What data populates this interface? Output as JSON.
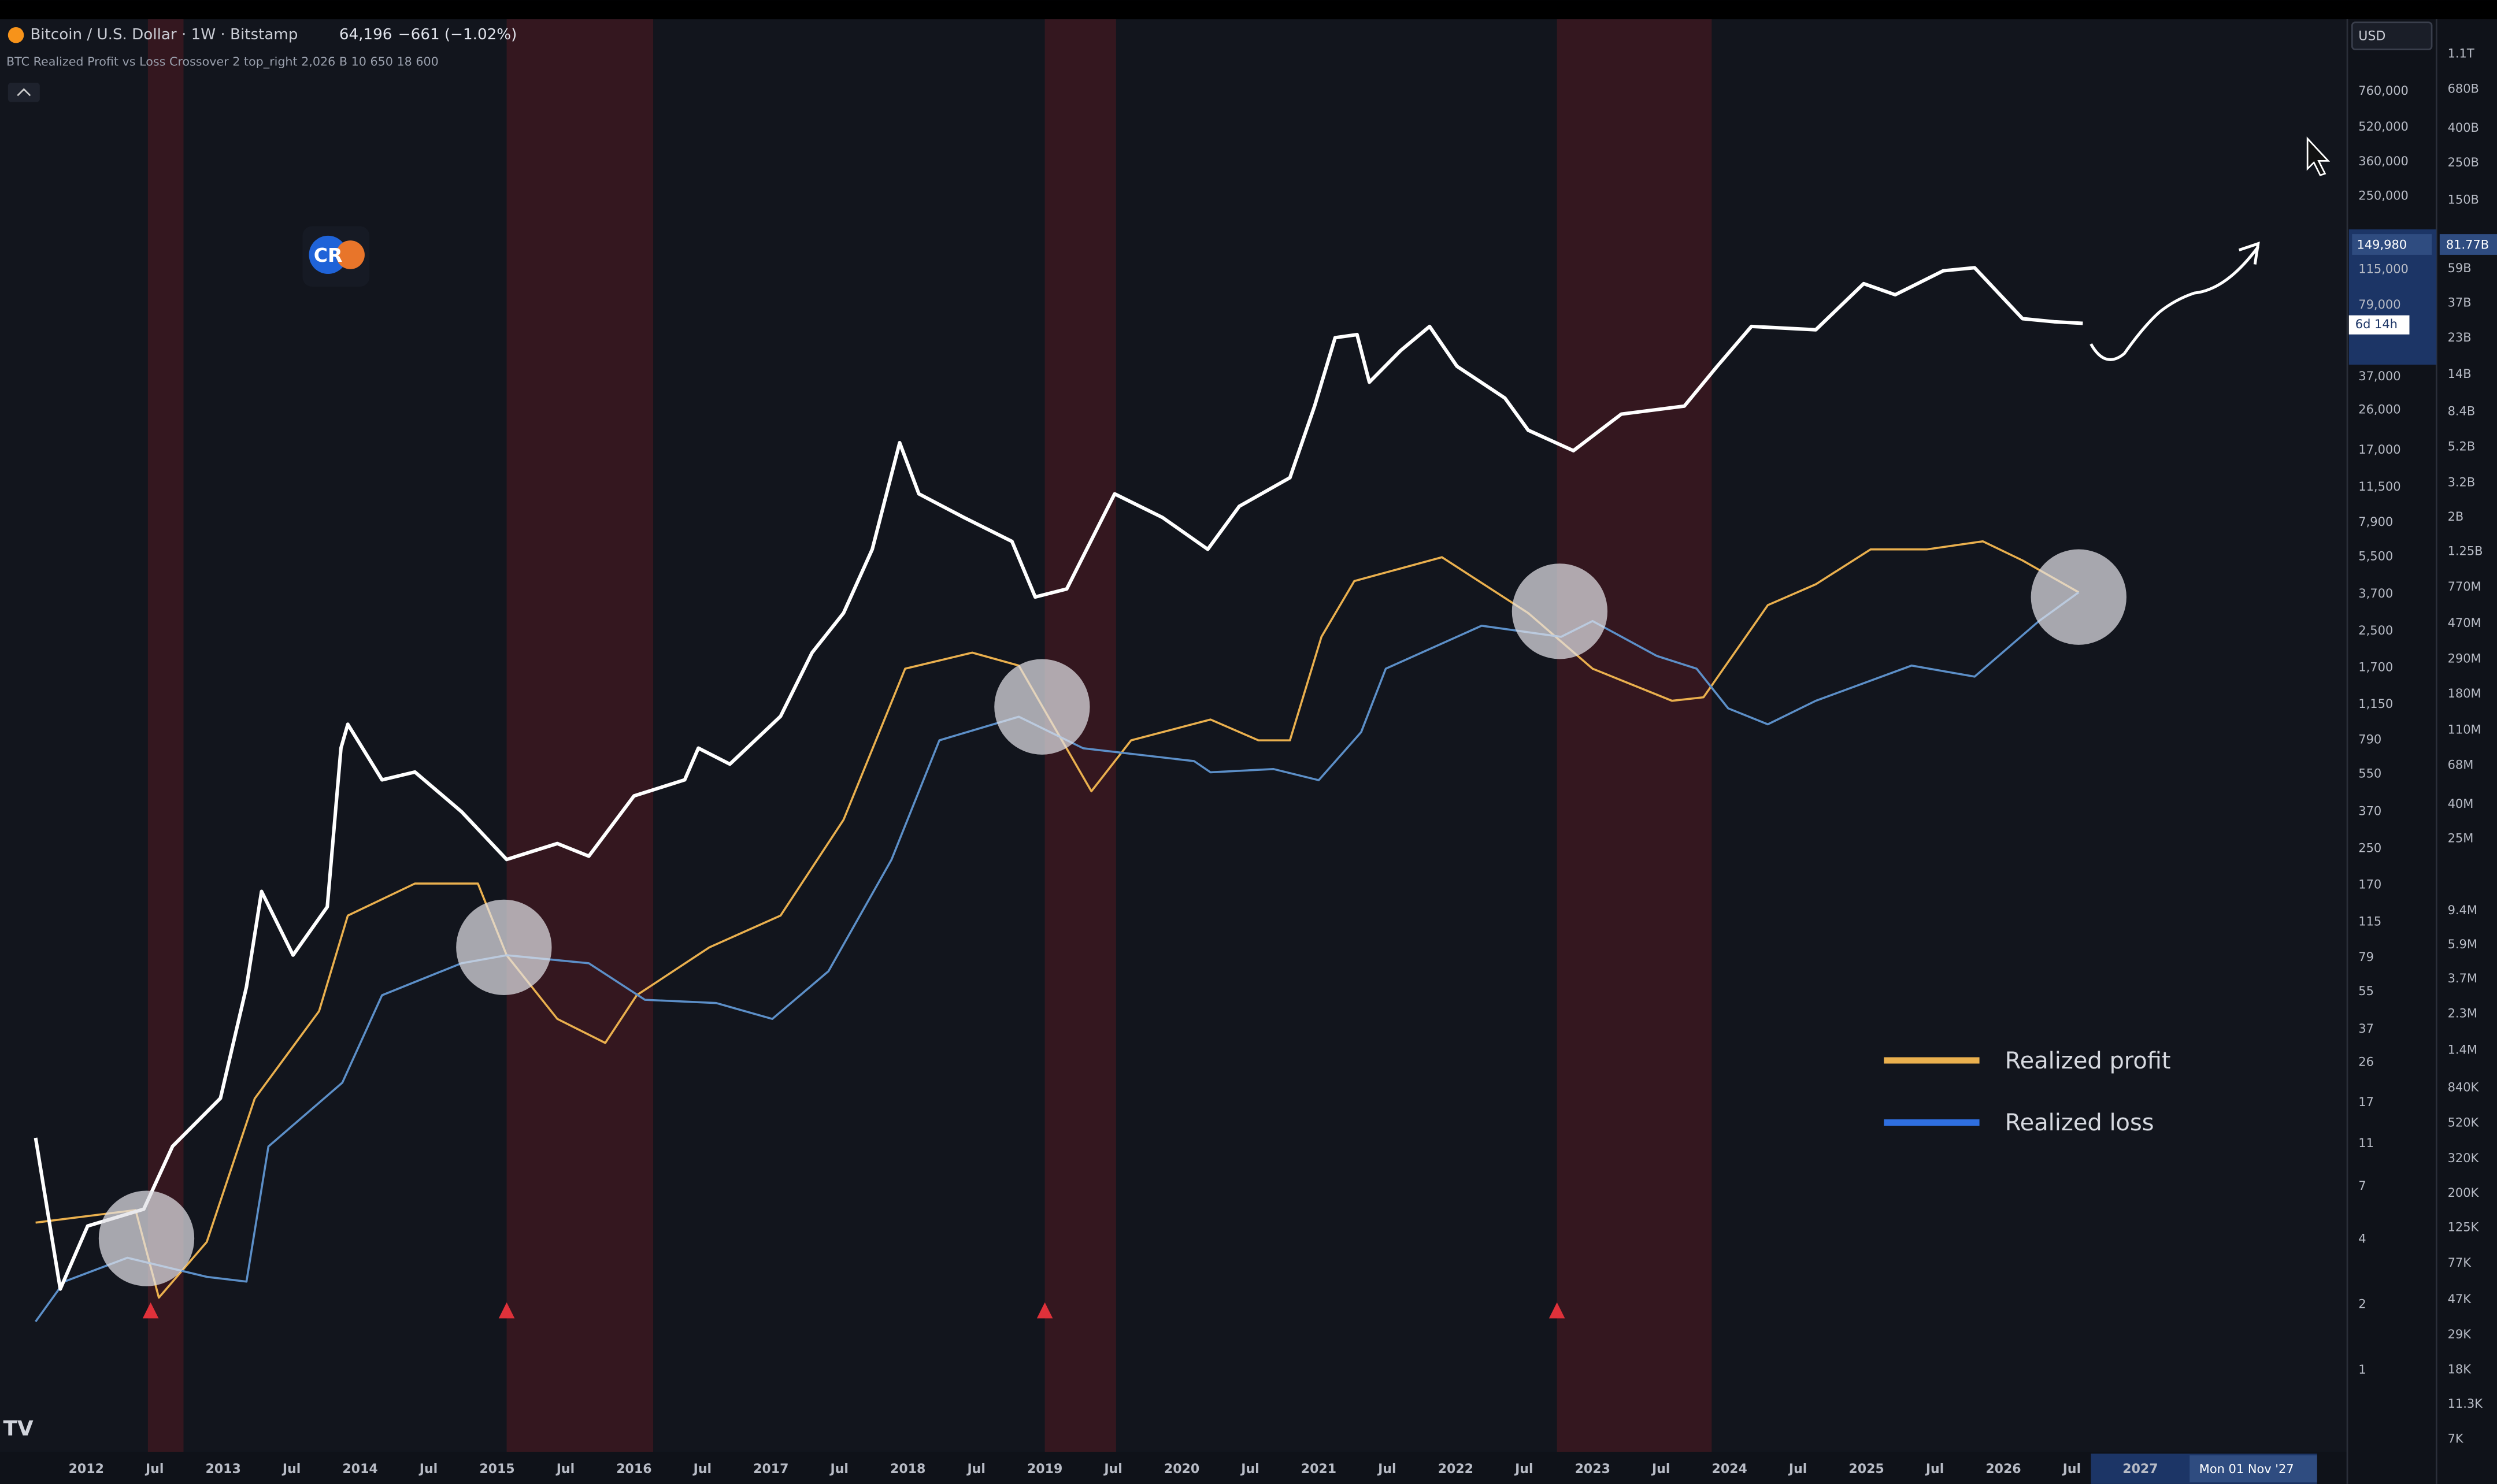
{
  "logo": "CR",
  "watermark": "TV",
  "chart_data": {
    "type": "line",
    "title": "Bitcoin / U.S. Dollar · 1W · Bitstamp",
    "header": {
      "last_price": "64,196",
      "change": "−661 (−1.02%)",
      "indicator": "BTC Realized Profit vs Loss Crossover 2 top_right 2,026 B 10 650 18 600"
    },
    "readouts": {
      "currency": "USD",
      "price": "149,980",
      "countdown": "6d 14h",
      "y2": "81.77B",
      "crosshair_date": "Mon 01 Nov '27"
    },
    "log_scale": true,
    "grid": false,
    "legend": "lower right",
    "xlim": [
      2011.37,
      2028.5
    ],
    "ylim": [
      0.42,
      1630000
    ],
    "y2lim": [
      5880,
      1770000000000
    ],
    "xticks": [
      2012,
      {
        "value": 2012.5,
        "label": "Jul"
      },
      2013,
      {
        "value": 2013.5,
        "label": "Jul"
      },
      2014,
      {
        "value": 2014.5,
        "label": "Jul"
      },
      2015,
      {
        "value": 2015.5,
        "label": "Jul"
      },
      2016,
      {
        "value": 2016.5,
        "label": "Jul"
      },
      2017,
      {
        "value": 2017.5,
        "label": "Jul"
      },
      2018,
      {
        "value": 2018.5,
        "label": "Jul"
      },
      2019,
      {
        "value": 2019.5,
        "label": "Jul"
      },
      2020,
      {
        "value": 2020.5,
        "label": "Jul"
      },
      2021,
      {
        "value": 2021.5,
        "label": "Jul"
      },
      2022,
      {
        "value": 2022.5,
        "label": "Jul"
      },
      2023,
      {
        "value": 2023.5,
        "label": "Jul"
      },
      2024,
      {
        "value": 2024.5,
        "label": "Jul"
      },
      2025,
      {
        "value": 2025.5,
        "label": "Jul"
      },
      2026,
      {
        "value": 2026.5,
        "label": "Jul"
      },
      2027
    ],
    "yticks": [
      1,
      2,
      4,
      7,
      11,
      17,
      26,
      37,
      55,
      79,
      115,
      170,
      250,
      370,
      550,
      790,
      {
        "value": 1150,
        "label": "1,150"
      },
      {
        "value": 1700,
        "label": "1,700"
      },
      {
        "value": 2500,
        "label": "2,500"
      },
      {
        "value": 3700,
        "label": "3,700"
      },
      {
        "value": 5500,
        "label": "5,500"
      },
      {
        "value": 7900,
        "label": "7,900"
      },
      {
        "value": 11500,
        "label": "11,500"
      },
      {
        "value": 17000,
        "label": "17,000"
      },
      {
        "value": 26000,
        "label": "26,000"
      },
      {
        "value": 37000,
        "label": "37,000"
      },
      {
        "value": 79000,
        "label": "79,000"
      },
      {
        "value": 115000,
        "label": "115,000"
      },
      {
        "value": 250000,
        "label": "250,000"
      },
      {
        "value": 360000,
        "label": "360,000"
      },
      {
        "value": 520000,
        "label": "520,000"
      },
      {
        "value": 760000,
        "label": "760,000"
      }
    ],
    "y2ticks": [
      {
        "value": 1100000000000,
        "label": "1.1T"
      },
      {
        "value": 680000000000,
        "label": "680B"
      },
      {
        "value": 400000000000,
        "label": "400B"
      },
      {
        "value": 250000000000,
        "label": "250B"
      },
      {
        "value": 150000000000,
        "label": "150B"
      },
      {
        "value": 59000000000,
        "label": "59B"
      },
      {
        "value": 37000000000,
        "label": "37B"
      },
      {
        "value": 23000000000,
        "label": "23B"
      },
      {
        "value": 14000000000,
        "label": "14B"
      },
      {
        "value": 8400000000,
        "label": "8.4B"
      },
      {
        "value": 5200000000,
        "label": "5.2B"
      },
      {
        "value": 3200000000,
        "label": "3.2B"
      },
      {
        "value": 2000000000,
        "label": "2B"
      },
      {
        "value": 1250000000,
        "label": "1.25B"
      },
      {
        "value": 770000000,
        "label": "770M"
      },
      {
        "value": 470000000,
        "label": "470M"
      },
      {
        "value": 290000000,
        "label": "290M"
      },
      {
        "value": 180000000,
        "label": "180M"
      },
      {
        "value": 110000000,
        "label": "110M"
      },
      {
        "value": 68000000,
        "label": "68M"
      },
      {
        "value": 40000000,
        "label": "40M"
      },
      {
        "value": 25000000,
        "label": "25M"
      },
      {
        "value": 9400000,
        "label": "9.4M"
      },
      {
        "value": 5900000,
        "label": "5.9M"
      },
      {
        "value": 3700000,
        "label": "3.7M"
      },
      {
        "value": 2300000,
        "label": "2.3M"
      },
      {
        "value": 1400000,
        "label": "1.4M"
      },
      {
        "value": 840000,
        "label": "840K"
      },
      {
        "value": 520000,
        "label": "520K"
      },
      {
        "value": 320000,
        "label": "320K"
      },
      {
        "value": 200000,
        "label": "200K"
      },
      {
        "value": 125000,
        "label": "125K"
      },
      {
        "value": 77000,
        "label": "77K"
      },
      {
        "value": 47000,
        "label": "47K"
      },
      {
        "value": 29000,
        "label": "29K"
      },
      {
        "value": 18000,
        "label": "18K"
      },
      {
        "value": 11300,
        "label": "11.3K"
      },
      {
        "value": 7000,
        "label": "7K"
      }
    ],
    "bands": [
      [
        2012.45,
        2012.71
      ],
      [
        2015.07,
        2016.14
      ],
      [
        2019.0,
        2019.52
      ],
      [
        2022.74,
        2023.87
      ]
    ],
    "band_color": "#3b1820",
    "series": [
      {
        "color": "#ffffff",
        "x": [
          2011.63,
          2011.81,
          2012.01,
          2012.42,
          2012.63,
          2012.98,
          2013.17,
          2013.28,
          2013.51,
          2013.76,
          2013.86,
          2013.91,
          2014.16,
          2014.4,
          2014.74,
          2015.07,
          2015.44,
          2015.67,
          2016.0,
          2016.37,
          2016.47,
          2016.7,
          2017.07,
          2017.3,
          2017.53,
          2017.74,
          2017.94,
          2018.08,
          2018.41,
          2018.76,
          2018.93,
          2019.16,
          2019.51,
          2019.86,
          2020.19,
          2020.42,
          2020.79,
          2020.97,
          2021.12,
          2021.28,
          2021.37,
          2021.6,
          2021.81,
          2022.01,
          2022.36,
          2022.53,
          2022.86,
          2023.21,
          2023.67,
          2023.91,
          2024.16,
          2024.63,
          2024.98,
          2025.21,
          2025.56,
          2025.79,
          2026.14,
          2026.37,
          2026.58
        ],
        "values": [
          11.7,
          2.36,
          4.6,
          5.5,
          10.7,
          17.8,
          58,
          159,
          81,
          135,
          725,
          933,
          518,
          563,
          370,
          223,
          264,
          231,
          437,
          518,
          725,
          612,
          1015,
          1990,
          3030,
          5950,
          18400,
          10700,
          8330,
          6470,
          3590,
          3910,
          10700,
          8330,
          5950,
          9380,
          12700,
          27100,
          55900,
          57800,
          34900,
          48900,
          63000,
          41300,
          29500,
          21000,
          16900,
          24900,
          27100,
          41300,
          63000,
          60800,
          99100,
          88100,
          113500,
          117300,
          68400,
          66200,
          65100
        ]
      },
      {
        "name": "Realized profit",
        "color": "#eab04e",
        "axis": "y2",
        "x": [
          2011.63,
          2012.36,
          2012.53,
          2012.88,
          2013.23,
          2013.7,
          2013.91,
          2014.4,
          2014.86,
          2015.07,
          2015.44,
          2015.79,
          2016.02,
          2016.55,
          2017.07,
          2017.53,
          2017.98,
          2018.47,
          2018.81,
          2018.99,
          2019.34,
          2019.63,
          2020.21,
          2020.56,
          2020.79,
          2021.02,
          2021.26,
          2021.9,
          2022.53,
          2023.0,
          2023.58,
          2023.81,
          2024.28,
          2024.63,
          2025.03,
          2025.44,
          2025.85,
          2026.14,
          2026.55
        ],
        "values": [
          134000,
          159000,
          48200,
          103000,
          726000,
          2390000,
          8790000,
          13600000,
          13600000,
          5120000,
          2150000,
          1550000,
          2970000,
          5700000,
          8790000,
          32400000,
          254000000,
          316000000,
          265000000,
          148000000,
          47800000,
          95700000,
          127000000,
          95700000,
          95700000,
          392000000,
          838000000,
          1160000000,
          542000000,
          254000000,
          164000000,
          172000000,
          604000000,
          802000000,
          1290000000,
          1290000000,
          1440000000,
          1110000000,
          719000000
        ]
      },
      {
        "name": "Realized loss",
        "color": "#2f6fe0",
        "axis": "y2",
        "x": [
          2011.63,
          2011.84,
          2012.3,
          2012.88,
          2013.17,
          2013.33,
          2013.87,
          2014.16,
          2014.74,
          2015.07,
          2015.67,
          2016.08,
          2016.6,
          2017.01,
          2017.42,
          2017.88,
          2018.23,
          2018.81,
          2019.28,
          2020.09,
          2020.21,
          2020.67,
          2021.0,
          2021.31,
          2021.49,
          2022.19,
          2022.77,
          2023.0,
          2023.47,
          2023.76,
          2023.99,
          2024.28,
          2024.63,
          2025.33,
          2025.79,
          2026.26,
          2026.55
        ],
        "values": [
          34800,
          60000,
          83000,
          64000,
          60000,
          378000,
          902000,
          2970000,
          4590000,
          5120000,
          4590000,
          2790000,
          2670000,
          2150000,
          4120000,
          18800000,
          95700000,
          132000000,
          85900000,
          72100000,
          61900000,
          64700000,
          55600000,
          107000000,
          254000000,
          456000000,
          392000000,
          486000000,
          302000000,
          254000000,
          148000000,
          119000000,
          164000000,
          265000000,
          228000000,
          486000000,
          719000000
        ]
      }
    ],
    "crossovers": {
      "x": [
        2012.44,
        2015.05,
        2018.98,
        2022.76,
        2026.55
      ],
      "values": [
        108000,
        5700000,
        151000000,
        555000000,
        674000000
      ],
      "axis": "y2"
    },
    "signals": {
      "x": [
        2012.47,
        2015.07,
        2019.0,
        2022.74
      ],
      "color": "#e0313a"
    }
  }
}
